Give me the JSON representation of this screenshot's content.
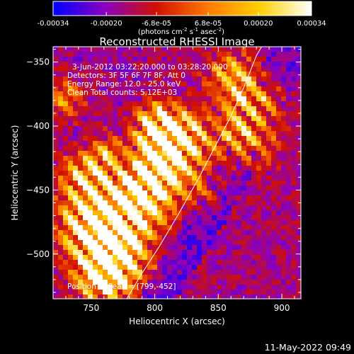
{
  "chart_data": {
    "type": "heatmap",
    "title": "Reconstructed RHESSI Image",
    "xlabel": "Heliocentric X (arcsec)",
    "ylabel": "Heliocentric Y (arcsec)",
    "xlim": [
      720,
      915
    ],
    "ylim": [
      -535,
      -338
    ],
    "xticks": [
      750,
      800,
      850,
      900
    ],
    "yticks": [
      -350,
      -400,
      -450,
      -500
    ],
    "info_lines": [
      "3-Jun-2012 03:22:20.000 to 03:28:20.000",
      "Detectors: 3F 5F 6F 7F 8F, Att 0",
      "Energy Range: 12.0 - 25.0 keV",
      "Clean     Total counts: 5.12E+03"
    ],
    "peak_text": "Position of Peak = [799,-452]",
    "peak": [
      799,
      -452
    ],
    "colorbar": {
      "range": [
        -0.00034,
        0.00034
      ],
      "tick_labels": [
        "-0.00034",
        "-0.00020",
        "-6.8e-05",
        "6.8e-05",
        "0.00020",
        "0.00034"
      ],
      "tick_values": [
        -0.00034,
        -0.0002,
        -6.8e-05,
        6.8e-05,
        0.0002,
        0.00034
      ],
      "unit_html": "(photons cm<sup>-2</sup> s<sup>-1</sup> asec<sup>-2</sup>)",
      "unit": "(photons cm-2 s-1 asec-2)"
    },
    "limb_curve": [
      [
        778,
        -535
      ],
      [
        790,
        -515
      ],
      [
        803,
        -495
      ],
      [
        818,
        -470
      ],
      [
        835,
        -440
      ],
      [
        848,
        -415
      ],
      [
        860,
        -392
      ],
      [
        870,
        -370
      ],
      [
        880,
        -345
      ],
      [
        884,
        -338
      ]
    ],
    "grid": false,
    "colormap": [
      "#0000ff",
      "#8a00c0",
      "#d01000",
      "#ff7a00",
      "#ffd000",
      "#ffffff"
    ]
  },
  "footer": {
    "timestamp": "11-May-2022 09:49"
  }
}
